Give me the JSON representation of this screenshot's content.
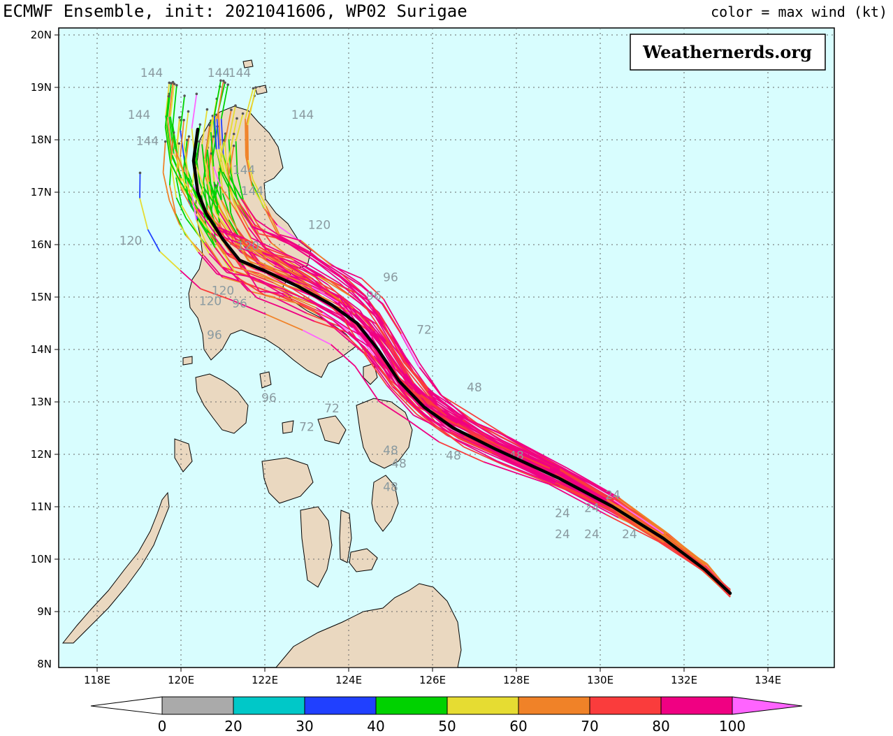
{
  "title": "ECMWF Ensemble, init: 2021041606, WP02 Surigae",
  "legend_note": "color = max wind (kt)",
  "watermark": "Weathernerds.org",
  "map": {
    "lon_ticks": [
      "118E",
      "120E",
      "122E",
      "124E",
      "126E",
      "128E",
      "130E",
      "132E",
      "134E"
    ],
    "lat_ticks": [
      "20N",
      "19N",
      "18N",
      "17N",
      "16N",
      "15N",
      "14N",
      "13N",
      "12N",
      "11N",
      "10N",
      "9N",
      "8N"
    ],
    "colors": {
      "ocean": "#d8fdfe",
      "land": "#ead8c0",
      "mean_track": "#000000"
    }
  },
  "colorbar": {
    "labels": [
      "0",
      "20",
      "30",
      "40",
      "50",
      "60",
      "70",
      "80",
      "100"
    ],
    "colors": [
      "#aaaaaa",
      "#00c8c8",
      "#2040ff",
      "#00d200",
      "#e6dc32",
      "#f08228",
      "#fa3c3c",
      "#f00082",
      "#ff64ff"
    ]
  },
  "mean_track": [
    [
      133.1,
      9.35
    ],
    [
      132.5,
      9.8
    ],
    [
      131.5,
      10.4
    ],
    [
      130.3,
      11.0
    ],
    [
      129,
      11.55
    ],
    [
      127.5,
      12.1
    ],
    [
      126.5,
      12.5
    ],
    [
      125.8,
      12.9
    ],
    [
      125.2,
      13.4
    ],
    [
      124.7,
      14.0
    ],
    [
      124.2,
      14.5
    ],
    [
      123.6,
      14.85
    ],
    [
      122.8,
      15.2
    ],
    [
      122.0,
      15.5
    ],
    [
      121.4,
      15.7
    ],
    [
      121.0,
      16.1
    ],
    [
      120.6,
      16.6
    ],
    [
      120.4,
      17.0
    ],
    [
      120.3,
      17.6
    ],
    [
      120.4,
      18.2
    ]
  ],
  "track_labels": [
    {
      "text": "144",
      "lon": 119.3,
      "lat": 19.2
    },
    {
      "text": "144",
      "lon": 120.9,
      "lat": 19.2
    },
    {
      "text": "144",
      "lon": 121.4,
      "lat": 19.2
    },
    {
      "text": "144",
      "lon": 119.0,
      "lat": 18.4
    },
    {
      "text": "144",
      "lon": 122.9,
      "lat": 18.4
    },
    {
      "text": "144",
      "lon": 119.2,
      "lat": 17.9
    },
    {
      "text": "144",
      "lon": 121.5,
      "lat": 17.35
    },
    {
      "text": "144",
      "lon": 121.7,
      "lat": 16.95
    },
    {
      "text": "120",
      "lon": 118.8,
      "lat": 16.0
    },
    {
      "text": "120",
      "lon": 123.3,
      "lat": 16.3
    },
    {
      "text": "120",
      "lon": 121.6,
      "lat": 15.9
    },
    {
      "text": "120",
      "lon": 121.0,
      "lat": 15.05
    },
    {
      "text": "120",
      "lon": 120.7,
      "lat": 14.85
    },
    {
      "text": "96",
      "lon": 120.8,
      "lat": 14.2
    },
    {
      "text": "96",
      "lon": 121.4,
      "lat": 14.8
    },
    {
      "text": "96",
      "lon": 125.0,
      "lat": 15.3
    },
    {
      "text": "96",
      "lon": 124.6,
      "lat": 14.95
    },
    {
      "text": "96",
      "lon": 122.1,
      "lat": 13.0
    },
    {
      "text": "72",
      "lon": 123.0,
      "lat": 12.45
    },
    {
      "text": "72",
      "lon": 123.6,
      "lat": 12.8
    },
    {
      "text": "72",
      "lon": 125.8,
      "lat": 14.3
    },
    {
      "text": "48",
      "lon": 127.0,
      "lat": 13.2
    },
    {
      "text": "48",
      "lon": 125.0,
      "lat": 12.0
    },
    {
      "text": "48",
      "lon": 125.2,
      "lat": 11.75
    },
    {
      "text": "48",
      "lon": 125.0,
      "lat": 11.3
    },
    {
      "text": "48",
      "lon": 126.5,
      "lat": 11.9
    },
    {
      "text": "48",
      "lon": 128.0,
      "lat": 11.9
    },
    {
      "text": "24",
      "lon": 129.1,
      "lat": 10.4
    },
    {
      "text": "24",
      "lon": 129.8,
      "lat": 10.4
    },
    {
      "text": "24",
      "lon": 130.7,
      "lat": 10.4
    },
    {
      "text": "24",
      "lon": 129.1,
      "lat": 10.8
    },
    {
      "text": "24",
      "lon": 129.8,
      "lat": 10.9
    },
    {
      "text": "24",
      "lon": 130.3,
      "lat": 11.15
    }
  ]
}
